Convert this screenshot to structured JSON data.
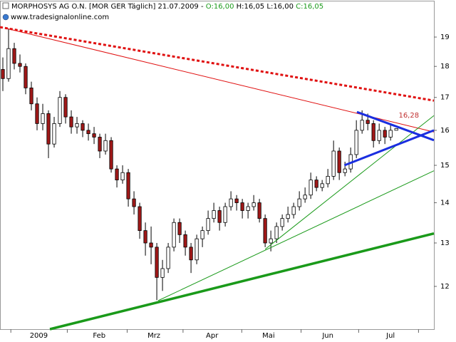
{
  "header": {
    "name": "MORPHOSYS AG O.N. [MOR GER  Täglich] 21.07.2009 - ",
    "open": "O:16,00",
    "high": "H:16,05",
    "low": "L:16,00",
    "close": "C:16,05",
    "source": "www.tradesignalonline.com"
  },
  "chart_data": {
    "type": "candlestick",
    "log": true,
    "ylim": [
      11.09,
      20.29
    ],
    "yticks": [
      12,
      13,
      14,
      15,
      16,
      17,
      18,
      19
    ],
    "xlim": [
      -0.5,
      75.6
    ],
    "xticks": [
      1.4,
      11.3,
      21.8,
      31.6,
      41.9,
      52.3,
      62.4,
      72.9
    ],
    "xlabels": [
      {
        "value": 6.3,
        "label": "2009"
      },
      {
        "value": 16.9,
        "label": "Feb"
      },
      {
        "value": 26.5,
        "label": "Mrz"
      },
      {
        "value": 36.7,
        "label": "Apr"
      },
      {
        "value": 46.6,
        "label": "Mai"
      },
      {
        "value": 57,
        "label": "Jun"
      },
      {
        "value": 68,
        "label": "Jul"
      }
    ],
    "up_color": "#ffffff",
    "down_color": "#a01818",
    "outline_color": "#000000",
    "candles": [
      [
        17.9,
        18.3,
        17.2,
        17.6
      ],
      [
        17.6,
        19.3,
        17.5,
        18.6
      ],
      [
        18.6,
        18.8,
        17.9,
        18.1
      ],
      [
        18.1,
        18.4,
        17.8,
        18.0
      ],
      [
        18.0,
        18.1,
        17.1,
        17.3
      ],
      [
        17.3,
        17.5,
        16.6,
        16.8
      ],
      [
        16.8,
        17.0,
        16.0,
        16.2
      ],
      [
        16.2,
        16.8,
        16.0,
        16.5
      ],
      [
        16.5,
        16.6,
        15.2,
        15.6
      ],
      [
        15.6,
        16.4,
        15.5,
        16.2
      ],
      [
        16.2,
        17.2,
        16.1,
        17.0
      ],
      [
        17.0,
        17.1,
        16.2,
        16.4
      ],
      [
        16.4,
        16.6,
        15.9,
        16.1
      ],
      [
        16.1,
        16.4,
        15.9,
        16.2
      ],
      [
        16.2,
        16.3,
        15.8,
        16.0
      ],
      [
        16.0,
        16.2,
        15.7,
        15.9
      ],
      [
        15.9,
        16.1,
        15.6,
        15.8
      ],
      [
        15.8,
        15.9,
        15.2,
        15.4
      ],
      [
        15.4,
        15.9,
        15.3,
        15.7
      ],
      [
        15.7,
        15.8,
        14.8,
        14.9
      ],
      [
        14.9,
        15.0,
        14.4,
        14.6
      ],
      [
        14.6,
        15.0,
        14.5,
        14.8
      ],
      [
        14.8,
        14.9,
        13.9,
        14.1
      ],
      [
        14.1,
        14.3,
        13.7,
        13.9
      ],
      [
        13.9,
        14.0,
        13.1,
        13.3
      ],
      [
        13.3,
        13.5,
        12.7,
        13.0
      ],
      [
        13.0,
        13.4,
        12.5,
        12.9
      ],
      [
        12.9,
        13.0,
        11.7,
        12.2
      ],
      [
        12.2,
        12.6,
        11.9,
        12.4
      ],
      [
        12.4,
        13.0,
        12.3,
        12.9
      ],
      [
        12.9,
        13.6,
        12.8,
        13.5
      ],
      [
        13.5,
        13.6,
        13.0,
        13.2
      ],
      [
        13.2,
        13.3,
        12.7,
        12.9
      ],
      [
        12.9,
        13.0,
        12.3,
        12.6
      ],
      [
        12.6,
        13.2,
        12.5,
        13.1
      ],
      [
        13.1,
        13.4,
        12.9,
        13.3
      ],
      [
        13.3,
        13.8,
        13.2,
        13.6
      ],
      [
        13.6,
        14.0,
        13.5,
        13.8
      ],
      [
        13.8,
        13.9,
        13.3,
        13.5
      ],
      [
        13.5,
        14.0,
        13.4,
        13.9
      ],
      [
        13.9,
        14.3,
        13.8,
        14.1
      ],
      [
        14.1,
        14.2,
        13.8,
        14.0
      ],
      [
        14.0,
        14.1,
        13.6,
        13.8
      ],
      [
        13.8,
        14.0,
        13.6,
        13.9
      ],
      [
        13.9,
        14.2,
        13.8,
        14.0
      ],
      [
        14.0,
        14.1,
        13.5,
        13.6
      ],
      [
        13.6,
        13.7,
        12.9,
        13.0
      ],
      [
        13.0,
        13.3,
        12.8,
        13.1
      ],
      [
        13.1,
        13.5,
        13.0,
        13.4
      ],
      [
        13.4,
        13.7,
        13.3,
        13.6
      ],
      [
        13.6,
        13.9,
        13.5,
        13.7
      ],
      [
        13.7,
        14.0,
        13.6,
        13.9
      ],
      [
        13.9,
        14.3,
        13.8,
        14.1
      ],
      [
        14.1,
        14.4,
        14.0,
        14.2
      ],
      [
        14.2,
        14.8,
        14.1,
        14.6
      ],
      [
        14.6,
        14.7,
        14.3,
        14.4
      ],
      [
        14.4,
        14.6,
        14.3,
        14.5
      ],
      [
        14.5,
        14.9,
        14.4,
        14.7
      ],
      [
        14.7,
        15.7,
        14.6,
        15.4
      ],
      [
        15.4,
        15.5,
        14.6,
        14.8
      ],
      [
        14.8,
        15.1,
        14.7,
        14.9
      ],
      [
        14.9,
        15.5,
        14.8,
        15.3
      ],
      [
        15.3,
        16.3,
        15.2,
        16.0
      ],
      [
        16.0,
        16.6,
        15.9,
        16.3
      ],
      [
        16.3,
        16.5,
        16.0,
        16.2
      ],
      [
        16.2,
        16.3,
        15.5,
        15.7
      ],
      [
        15.7,
        16.2,
        15.6,
        16.0
      ],
      [
        16.0,
        16.1,
        15.6,
        15.8
      ],
      [
        15.8,
        16.2,
        15.7,
        16.0
      ],
      [
        16.0,
        16.05,
        16.0,
        16.05
      ]
    ],
    "trendlines": [
      {
        "color": "#e01010",
        "width": 3,
        "dash": true,
        "from": [
          -0.5,
          19.35
        ],
        "to": [
          75.6,
          16.9
        ]
      },
      {
        "color": "#e01010",
        "width": 1,
        "dash": false,
        "from": [
          0.75,
          19.3
        ],
        "to": [
          75.6,
          15.95
        ]
      },
      {
        "color": "#1a9a1a",
        "width": 3.5,
        "dash": false,
        "from": [
          8.25,
          11.09
        ],
        "to": [
          75.6,
          13.23
        ]
      },
      {
        "color": "#1a9a1a",
        "width": 1,
        "dash": false,
        "from": [
          27.25,
          11.69
        ],
        "to": [
          75.6,
          14.85
        ]
      },
      {
        "color": "#1a9a1a",
        "width": 1,
        "dash": false,
        "from": [
          46.0,
          12.85
        ],
        "to": [
          75.6,
          16.44
        ]
      },
      {
        "color": "#1a2ee0",
        "width": 3,
        "dash": false,
        "from": [
          62.1,
          16.55
        ],
        "to": [
          75.6,
          15.71
        ]
      },
      {
        "color": "#1a2ee0",
        "width": 3,
        "dash": false,
        "from": [
          59.9,
          15.0
        ],
        "to": [
          75.6,
          16.0
        ]
      }
    ],
    "annotation": {
      "text": "16,28",
      "x": 71.2,
      "y": 16.45,
      "color": "#c03030"
    }
  }
}
